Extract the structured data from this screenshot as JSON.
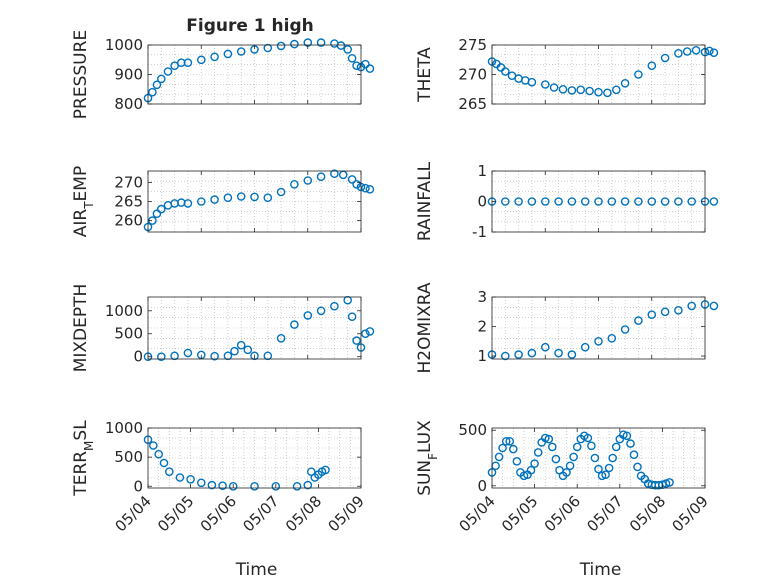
{
  "figure": {
    "title": "Figure 1 high"
  },
  "colors": {
    "marker": "#0072BD",
    "axis": "#262626",
    "grid": "#b0b0b0",
    "background": "#ffffff"
  },
  "chart_data": [
    {
      "type": "scatter",
      "marker": "circle",
      "grid": true,
      "ylabel": "PRESSURE",
      "xlabel": "",
      "title": "Figure 1 high",
      "xlim": [
        "05/04",
        "05/08"
      ],
      "ylim": [
        800,
        1000
      ],
      "yticks": [
        "800",
        "900",
        "1000"
      ],
      "xticklabels": [],
      "x": [
        "05/04 00:00",
        "05/04 02:00",
        "05/04 04:00",
        "05/04 06:00",
        "05/04 09:00",
        "05/04 12:00",
        "05/04 15:00",
        "05/04 18:00",
        "05/05 00:00",
        "05/05 06:00",
        "05/05 12:00",
        "05/05 18:00",
        "05/06 00:00",
        "05/06 06:00",
        "05/06 12:00",
        "05/06 18:00",
        "05/07 00:00",
        "05/07 06:00",
        "05/07 12:00",
        "05/07 15:00",
        "05/07 18:00",
        "05/07 20:00",
        "05/07 22:00",
        "05/08 00:00",
        "05/08 02:00",
        "05/08 04:00"
      ],
      "y": [
        820,
        840,
        865,
        885,
        910,
        930,
        940,
        940,
        950,
        960,
        970,
        978,
        985,
        990,
        997,
        1003,
        1008,
        1008,
        1005,
        998,
        985,
        955,
        930,
        925,
        935,
        920
      ]
    },
    {
      "type": "scatter",
      "marker": "circle",
      "grid": true,
      "ylabel": "THETA",
      "xlabel": "",
      "xlim": [
        "05/04",
        "05/08"
      ],
      "ylim": [
        265,
        275
      ],
      "yticks": [
        "265",
        "270",
        "275"
      ],
      "xticklabels": [],
      "x": [
        "05/04 00:00",
        "05/04 02:00",
        "05/04 04:00",
        "05/04 06:00",
        "05/04 09:00",
        "05/04 12:00",
        "05/04 15:00",
        "05/04 18:00",
        "05/05 00:00",
        "05/05 04:00",
        "05/05 08:00",
        "05/05 12:00",
        "05/05 16:00",
        "05/05 20:00",
        "05/06 00:00",
        "05/06 04:00",
        "05/06 08:00",
        "05/06 12:00",
        "05/06 18:00",
        "05/07 00:00",
        "05/07 06:00",
        "05/07 12:00",
        "05/07 16:00",
        "05/07 20:00",
        "05/08 00:00",
        "05/08 02:00",
        "05/08 04:00"
      ],
      "y": [
        272.2,
        271.8,
        271.2,
        270.5,
        269.8,
        269.3,
        269.0,
        268.7,
        268.3,
        267.8,
        267.5,
        267.3,
        267.4,
        267.2,
        267.0,
        266.9,
        267.4,
        268.5,
        270.0,
        271.5,
        272.8,
        273.6,
        273.9,
        274.1,
        273.8,
        274.0,
        273.7
      ]
    },
    {
      "type": "scatter",
      "marker": "circle",
      "grid": true,
      "ylabel": "AIR_TEMP",
      "xlabel": "",
      "xlim": [
        "05/04",
        "05/08"
      ],
      "ylim": [
        257,
        273
      ],
      "yticks": [
        "260",
        "265",
        "270"
      ],
      "xticklabels": [],
      "x": [
        "05/04 00:00",
        "05/04 02:00",
        "05/04 04:00",
        "05/04 06:00",
        "05/04 09:00",
        "05/04 12:00",
        "05/04 15:00",
        "05/04 18:00",
        "05/05 00:00",
        "05/05 06:00",
        "05/05 12:00",
        "05/05 18:00",
        "05/06 00:00",
        "05/06 06:00",
        "05/06 12:00",
        "05/06 18:00",
        "05/07 00:00",
        "05/07 06:00",
        "05/07 12:00",
        "05/07 16:00",
        "05/07 20:00",
        "05/07 22:00",
        "05/08 00:00",
        "05/08 02:00",
        "05/08 04:00"
      ],
      "y": [
        258.3,
        260.0,
        261.8,
        263.0,
        264.0,
        264.5,
        264.7,
        264.5,
        265.0,
        265.5,
        266.0,
        266.3,
        266.2,
        266.0,
        267.5,
        269.5,
        270.5,
        271.5,
        272.3,
        272.0,
        270.8,
        269.5,
        268.8,
        268.5,
        268.2
      ]
    },
    {
      "type": "scatter",
      "marker": "circle",
      "grid": true,
      "ylabel": "RAINFALL",
      "xlabel": "",
      "xlim": [
        "05/04",
        "05/08"
      ],
      "ylim": [
        -1,
        1
      ],
      "yticks": [
        "-1",
        "0",
        "1"
      ],
      "xticklabels": [],
      "x": [
        "05/04 00:00",
        "05/04 06:00",
        "05/04 12:00",
        "05/04 18:00",
        "05/05 00:00",
        "05/05 06:00",
        "05/05 12:00",
        "05/05 18:00",
        "05/06 00:00",
        "05/06 06:00",
        "05/06 12:00",
        "05/06 18:00",
        "05/07 00:00",
        "05/07 06:00",
        "05/07 12:00",
        "05/07 18:00",
        "05/08 00:00",
        "05/08 04:00"
      ],
      "y": [
        0,
        0,
        0,
        0,
        0,
        0,
        0,
        0,
        0,
        0,
        0,
        0,
        0,
        0,
        0,
        0,
        0,
        0
      ]
    },
    {
      "type": "scatter",
      "marker": "circle",
      "grid": true,
      "ylabel": "MIXDEPTH",
      "xlabel": "",
      "xlim": [
        "05/04",
        "05/08"
      ],
      "ylim": [
        -50,
        1300
      ],
      "yticks": [
        "0",
        "500",
        "1000"
      ],
      "xticklabels": [],
      "x": [
        "05/04 00:00",
        "05/04 06:00",
        "05/04 12:00",
        "05/04 18:00",
        "05/05 00:00",
        "05/05 06:00",
        "05/05 12:00",
        "05/05 15:00",
        "05/05 18:00",
        "05/05 21:00",
        "05/06 00:00",
        "05/06 06:00",
        "05/06 12:00",
        "05/06 18:00",
        "05/07 00:00",
        "05/07 06:00",
        "05/07 12:00",
        "05/07 18:00",
        "05/07 20:00",
        "05/07 22:00",
        "05/08 00:00",
        "05/08 02:00",
        "05/08 04:00"
      ],
      "y": [
        0,
        0,
        20,
        80,
        40,
        10,
        20,
        120,
        250,
        150,
        20,
        20,
        400,
        700,
        900,
        1000,
        1100,
        1230,
        870,
        350,
        200,
        500,
        550
      ]
    },
    {
      "type": "scatter",
      "marker": "circle",
      "grid": true,
      "ylabel": "H2OMIXRA",
      "xlabel": "",
      "xlim": [
        "05/04",
        "05/08"
      ],
      "ylim": [
        0.9,
        3.0
      ],
      "yticks": [
        "1",
        "2",
        "3"
      ],
      "xticklabels": [],
      "x": [
        "05/04 00:00",
        "05/04 06:00",
        "05/04 12:00",
        "05/04 18:00",
        "05/05 00:00",
        "05/05 06:00",
        "05/05 12:00",
        "05/05 18:00",
        "05/06 00:00",
        "05/06 06:00",
        "05/06 12:00",
        "05/06 18:00",
        "05/07 00:00",
        "05/07 06:00",
        "05/07 12:00",
        "05/07 18:00",
        "05/08 00:00",
        "05/08 04:00"
      ],
      "y": [
        1.05,
        1.0,
        1.05,
        1.1,
        1.3,
        1.1,
        1.05,
        1.3,
        1.5,
        1.6,
        1.9,
        2.2,
        2.4,
        2.5,
        2.55,
        2.7,
        2.75,
        2.7
      ]
    },
    {
      "type": "scatter",
      "marker": "circle",
      "grid": true,
      "ylabel": "TERR_MSL",
      "xlabel": "Time",
      "xlim": [
        "05/04",
        "05/09"
      ],
      "ylim": [
        -30,
        1000
      ],
      "yticks": [
        "0",
        "500",
        "1000"
      ],
      "xticklabels": [
        "05/04",
        "05/05",
        "05/06",
        "05/07",
        "05/08",
        "05/09"
      ],
      "x": [
        "05/04 00:00",
        "05/04 03:00",
        "05/04 06:00",
        "05/04 09:00",
        "05/04 12:00",
        "05/04 18:00",
        "05/05 00:00",
        "05/05 06:00",
        "05/05 12:00",
        "05/05 18:00",
        "05/06 00:00",
        "05/06 12:00",
        "05/07 00:00",
        "05/07 12:00",
        "05/07 18:00",
        "05/07 20:00",
        "05/07 22:00",
        "05/08 00:00",
        "05/08 02:00",
        "05/08 04:00"
      ],
      "y": [
        800,
        700,
        550,
        400,
        250,
        150,
        120,
        60,
        20,
        10,
        0,
        0,
        0,
        0,
        20,
        250,
        150,
        200,
        250,
        280
      ]
    },
    {
      "type": "scatter",
      "marker": "circle",
      "grid": true,
      "ylabel": "SUN_FLUX",
      "xlabel": "Time",
      "xlim": [
        "05/04",
        "05/09"
      ],
      "ylim": [
        -20,
        520
      ],
      "yticks": [
        "0",
        "500"
      ],
      "xticklabels": [
        "05/04",
        "05/05",
        "05/06",
        "05/07",
        "05/08",
        "05/09"
      ],
      "x": [
        "05/04 00:00",
        "05/04 02:00",
        "05/04 04:00",
        "05/04 06:00",
        "05/04 08:00",
        "05/04 10:00",
        "05/04 12:00",
        "05/04 14:00",
        "05/04 16:00",
        "05/04 18:00",
        "05/04 20:00",
        "05/04 22:00",
        "05/05 00:00",
        "05/05 02:00",
        "05/05 04:00",
        "05/05 06:00",
        "05/05 08:00",
        "05/05 10:00",
        "05/05 12:00",
        "05/05 14:00",
        "05/05 16:00",
        "05/05 18:00",
        "05/05 20:00",
        "05/05 22:00",
        "05/06 00:00",
        "05/06 02:00",
        "05/06 04:00",
        "05/06 06:00",
        "05/06 08:00",
        "05/06 10:00",
        "05/06 12:00",
        "05/06 14:00",
        "05/06 16:00",
        "05/06 18:00",
        "05/06 20:00",
        "05/06 22:00",
        "05/07 00:00",
        "05/07 02:00",
        "05/07 04:00",
        "05/07 06:00",
        "05/07 08:00",
        "05/07 10:00",
        "05/07 12:00",
        "05/07 14:00",
        "05/07 16:00",
        "05/07 18:00",
        "05/07 20:00",
        "05/07 22:00",
        "05/08 00:00",
        "05/08 02:00",
        "05/08 04:00"
      ],
      "y": [
        120,
        180,
        260,
        340,
        400,
        400,
        330,
        220,
        120,
        90,
        100,
        140,
        200,
        300,
        390,
        430,
        420,
        350,
        240,
        140,
        90,
        120,
        180,
        260,
        350,
        420,
        450,
        430,
        360,
        250,
        150,
        90,
        100,
        160,
        250,
        350,
        420,
        460,
        450,
        380,
        280,
        170,
        90,
        60,
        20,
        10,
        5,
        5,
        10,
        20,
        30
      ]
    }
  ]
}
